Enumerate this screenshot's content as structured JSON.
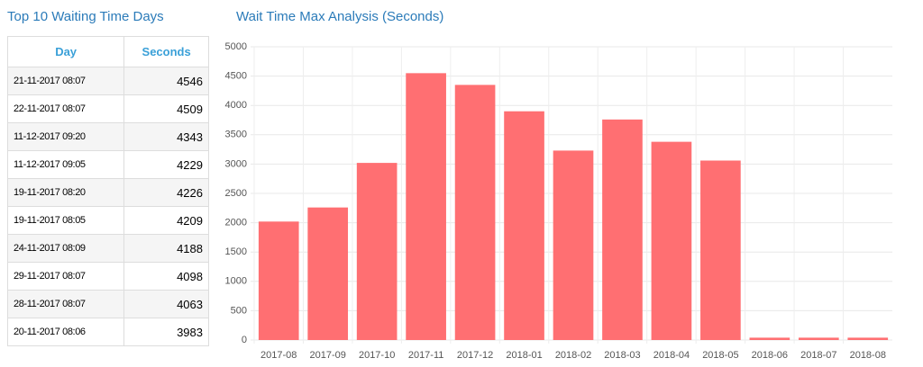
{
  "table": {
    "title": "Top 10 Waiting Time Days",
    "columns": [
      "Day",
      "Seconds"
    ],
    "rows": [
      [
        "21-11-2017 08:07",
        4546
      ],
      [
        "22-11-2017 08:07",
        4509
      ],
      [
        "11-12-2017 09:20",
        4343
      ],
      [
        "11-12-2017 09:05",
        4229
      ],
      [
        "19-11-2017 08:20",
        4226
      ],
      [
        "19-11-2017 08:05",
        4209
      ],
      [
        "24-11-2017 08:09",
        4188
      ],
      [
        "29-11-2017 08:07",
        4098
      ],
      [
        "28-11-2017 08:07",
        4063
      ],
      [
        "20-11-2017 08:06",
        3983
      ]
    ]
  },
  "chart_data": {
    "type": "bar",
    "title": "Wait Time Max Analysis (Seconds)",
    "categories": [
      "2017-08",
      "2017-09",
      "2017-10",
      "2017-11",
      "2017-12",
      "2018-01",
      "2018-02",
      "2018-03",
      "2018-04",
      "2018-05",
      "2018-06",
      "2018-07",
      "2018-08"
    ],
    "values": [
      2020,
      2260,
      3020,
      4550,
      4350,
      3900,
      3230,
      3760,
      3380,
      3060,
      40,
      40,
      40
    ],
    "color": "#ff6f72",
    "ylim": [
      0,
      5000
    ],
    "yticks": [
      0,
      500,
      1000,
      1500,
      2000,
      2500,
      3000,
      3500,
      4000,
      4500,
      5000
    ],
    "grid": true
  }
}
